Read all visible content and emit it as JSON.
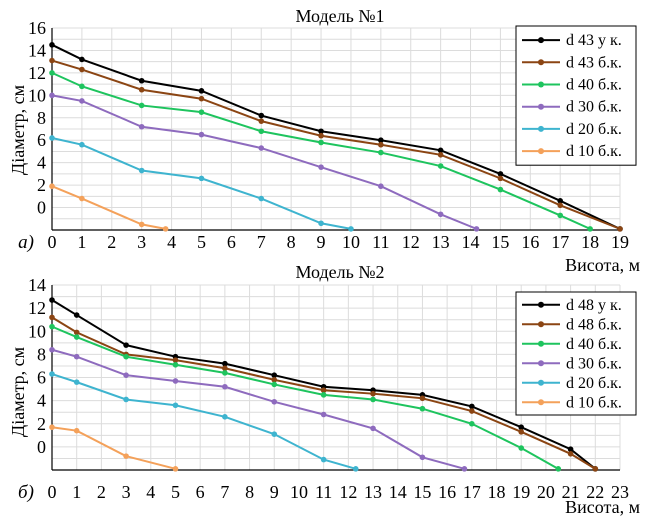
{
  "chart_data": [
    {
      "type": "line",
      "panel_label": "a)",
      "title": "Модель №1",
      "xlabel": "Висота, м",
      "ylabel": "Діаметр, см",
      "xlim": [
        0,
        19
      ],
      "ylim": [
        -2,
        16
      ],
      "x_ticks": [
        0,
        1,
        2,
        3,
        4,
        5,
        6,
        7,
        8,
        9,
        10,
        11,
        12,
        13,
        14,
        15,
        16,
        17,
        18,
        19
      ],
      "y_ticks": [
        0,
        2,
        4,
        6,
        8,
        10,
        12,
        14,
        16
      ],
      "grid": true,
      "legend_position": "top-right",
      "series": [
        {
          "name": "d 43 у к.",
          "color": "#000000",
          "x": [
            0,
            1,
            3,
            5,
            7,
            9,
            11,
            13,
            15,
            17,
            19
          ],
          "y": [
            14.5,
            13.2,
            11.3,
            10.4,
            8.2,
            6.8,
            6.0,
            5.1,
            3.0,
            0.6,
            -1.9
          ]
        },
        {
          "name": "d 43 б.к.",
          "color": "#8B4513",
          "x": [
            0,
            1,
            3,
            5,
            7,
            9,
            11,
            13,
            15,
            17,
            19
          ],
          "y": [
            13.1,
            12.3,
            10.5,
            9.7,
            7.7,
            6.4,
            5.6,
            4.7,
            2.6,
            0.2,
            -1.9
          ]
        },
        {
          "name": "d 40 б.к.",
          "color": "#1EC45E",
          "x": [
            0,
            1,
            3,
            5,
            7,
            9,
            11,
            13,
            15,
            17,
            18
          ],
          "y": [
            12.0,
            10.8,
            9.1,
            8.5,
            6.8,
            5.8,
            4.9,
            3.7,
            1.6,
            -0.7,
            -1.9
          ]
        },
        {
          "name": "d 30 б.к.",
          "color": "#8E6BBE",
          "x": [
            0,
            1,
            3,
            5,
            7,
            9,
            11,
            13,
            14.2
          ],
          "y": [
            10.0,
            9.5,
            7.2,
            6.5,
            5.3,
            3.6,
            1.9,
            -0.6,
            -1.9
          ]
        },
        {
          "name": "d 20 б.к.",
          "color": "#3EB4CF",
          "x": [
            0,
            1,
            3,
            5,
            7,
            9,
            10
          ],
          "y": [
            6.2,
            5.6,
            3.3,
            2.6,
            0.8,
            -1.4,
            -1.9
          ]
        },
        {
          "name": "d 10 б.к.",
          "color": "#F4A15A",
          "x": [
            0,
            1,
            3,
            3.8
          ],
          "y": [
            1.9,
            0.8,
            -1.5,
            -1.9
          ]
        }
      ]
    },
    {
      "type": "line",
      "panel_label": "б)",
      "title": "Модель №2",
      "xlabel": "Висота, м",
      "ylabel": "Діаметр, см",
      "xlim": [
        0,
        23
      ],
      "ylim": [
        -2,
        14
      ],
      "x_ticks": [
        0,
        1,
        2,
        3,
        4,
        5,
        6,
        7,
        8,
        9,
        10,
        11,
        12,
        13,
        14,
        15,
        16,
        17,
        18,
        19,
        20,
        21,
        22,
        23
      ],
      "y_ticks": [
        0,
        2,
        4,
        6,
        8,
        10,
        12,
        14
      ],
      "grid": true,
      "legend_position": "top-right",
      "series": [
        {
          "name": "d 48 у к.",
          "color": "#000000",
          "x": [
            0,
            1,
            3,
            5,
            7,
            9,
            11,
            13,
            15,
            17,
            19,
            21,
            22
          ],
          "y": [
            12.7,
            11.4,
            8.8,
            7.8,
            7.2,
            6.2,
            5.2,
            4.9,
            4.5,
            3.5,
            1.7,
            -0.2,
            -1.9
          ]
        },
        {
          "name": "d 48 б.к.",
          "color": "#8B4513",
          "x": [
            0,
            1,
            3,
            5,
            7,
            9,
            11,
            13,
            15,
            17,
            19,
            21,
            22
          ],
          "y": [
            11.2,
            9.9,
            8.0,
            7.5,
            6.8,
            5.8,
            4.9,
            4.6,
            4.2,
            3.1,
            1.3,
            -0.6,
            -1.9
          ]
        },
        {
          "name": "d 40 б.к.",
          "color": "#1EC45E",
          "x": [
            0,
            1,
            3,
            5,
            7,
            9,
            11,
            13,
            15,
            17,
            19,
            20.5
          ],
          "y": [
            10.4,
            9.5,
            7.8,
            7.1,
            6.4,
            5.4,
            4.5,
            4.1,
            3.3,
            2.0,
            -0.1,
            -1.9
          ]
        },
        {
          "name": "d 30 б.к.",
          "color": "#8E6BBE",
          "x": [
            0,
            1,
            3,
            5,
            7,
            9,
            11,
            13,
            15,
            16.7
          ],
          "y": [
            8.4,
            7.8,
            6.2,
            5.7,
            5.2,
            3.9,
            2.8,
            1.6,
            -0.9,
            -1.9
          ]
        },
        {
          "name": "d 20 б.к.",
          "color": "#3EB4CF",
          "x": [
            0,
            1,
            3,
            5,
            7,
            9,
            11,
            12.3
          ],
          "y": [
            6.3,
            5.6,
            4.1,
            3.6,
            2.6,
            1.1,
            -1.1,
            -1.9
          ]
        },
        {
          "name": "d 10 б.к.",
          "color": "#F4A15A",
          "x": [
            0,
            1,
            3,
            5
          ],
          "y": [
            1.7,
            1.4,
            -0.8,
            -1.9
          ]
        }
      ]
    }
  ]
}
